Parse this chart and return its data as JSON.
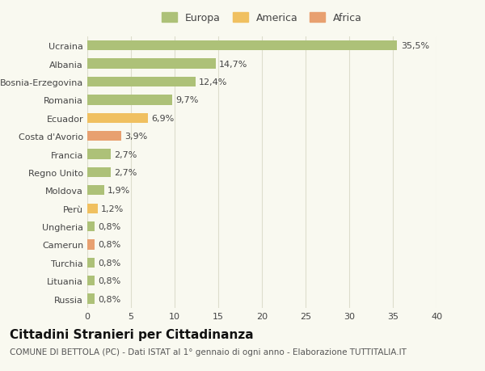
{
  "categories": [
    "Ucraina",
    "Albania",
    "Bosnia-Erzegovina",
    "Romania",
    "Ecuador",
    "Costa d'Avorio",
    "Francia",
    "Regno Unito",
    "Moldova",
    "Perù",
    "Ungheria",
    "Camerun",
    "Turchia",
    "Lituania",
    "Russia"
  ],
  "values": [
    35.5,
    14.7,
    12.4,
    9.7,
    6.9,
    3.9,
    2.7,
    2.7,
    1.9,
    1.2,
    0.8,
    0.8,
    0.8,
    0.8,
    0.8
  ],
  "labels": [
    "35,5%",
    "14,7%",
    "12,4%",
    "9,7%",
    "6,9%",
    "3,9%",
    "2,7%",
    "2,7%",
    "1,9%",
    "1,2%",
    "0,8%",
    "0,8%",
    "0,8%",
    "0,8%",
    "0,8%"
  ],
  "colors": [
    "#adc178",
    "#adc178",
    "#adc178",
    "#adc178",
    "#f0c060",
    "#e8a070",
    "#adc178",
    "#adc178",
    "#adc178",
    "#f0c060",
    "#adc178",
    "#e8a070",
    "#adc178",
    "#adc178",
    "#adc178"
  ],
  "legend_labels": [
    "Europa",
    "America",
    "Africa"
  ],
  "legend_colors": [
    "#adc178",
    "#f0c060",
    "#e8a070"
  ],
  "title": "Cittadini Stranieri per Cittadinanza",
  "subtitle": "COMUNE DI BETTOLA (PC) - Dati ISTAT al 1° gennaio di ogni anno - Elaborazione TUTTITALIA.IT",
  "xlim": [
    0,
    40
  ],
  "xticks": [
    0,
    5,
    10,
    15,
    20,
    25,
    30,
    35,
    40
  ],
  "background_color": "#f9f9f0",
  "grid_color": "#ddddcc",
  "bar_height": 0.55,
  "label_fontsize": 8,
  "tick_fontsize": 8,
  "title_fontsize": 11,
  "subtitle_fontsize": 7.5
}
